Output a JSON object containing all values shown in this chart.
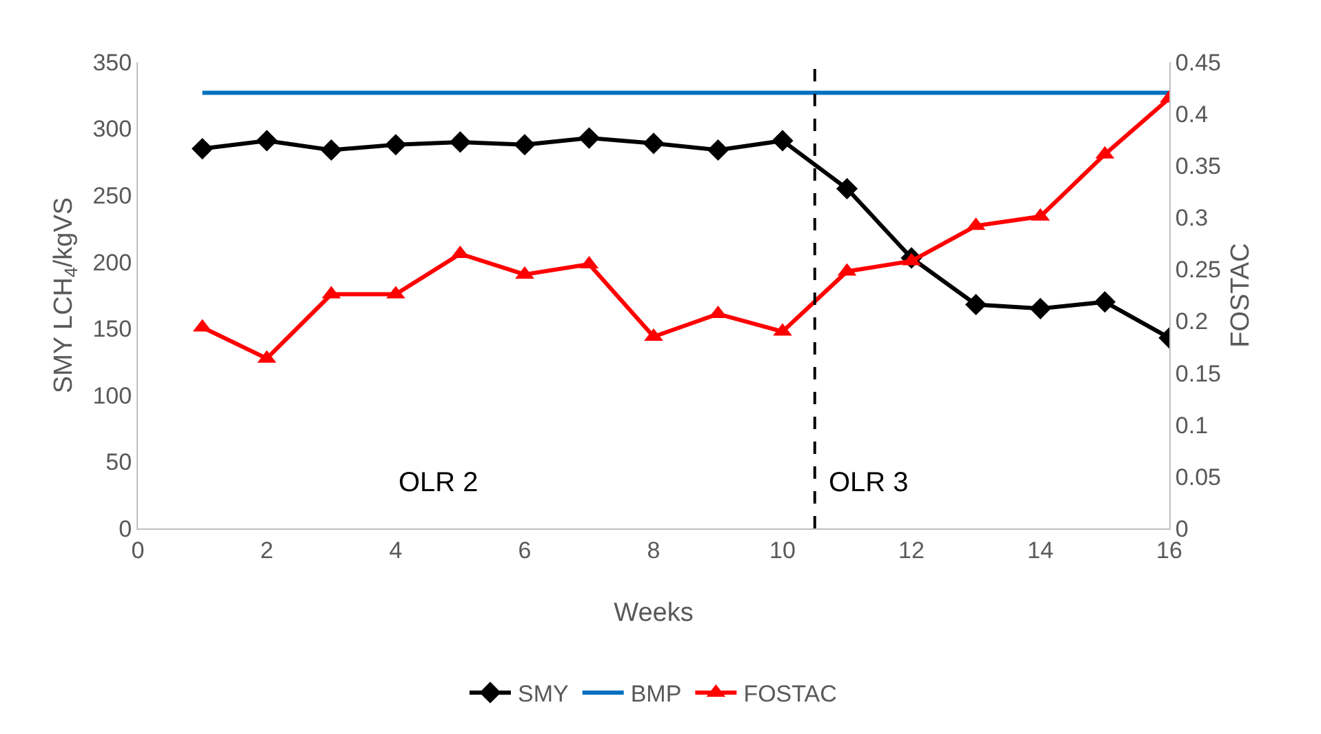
{
  "chart_data": {
    "type": "line",
    "xlabel": "Weeks",
    "ylabel": "SMY LCH$_{4}$/kgVS",
    "y2label": "FOSTAC",
    "x": [
      1,
      2,
      3,
      4,
      5,
      6,
      7,
      8,
      9,
      10,
      11,
      12,
      13,
      14,
      15,
      16
    ],
    "series": [
      {
        "name": "SMY",
        "color": "#000000",
        "marker": "diamond",
        "values": [
          285,
          291,
          284,
          288,
          290,
          288,
          293,
          289,
          284,
          291,
          255,
          203,
          168,
          165,
          170,
          143
        ]
      },
      {
        "name": "BMP",
        "color": "#0070c0",
        "marker": "none",
        "values": [
          327,
          327,
          327,
          327,
          327,
          327,
          327,
          327,
          327,
          327,
          327,
          327,
          327,
          327,
          327,
          327
        ]
      },
      {
        "name": "FOSTAC",
        "color": "#ff0000",
        "marker": "triangle",
        "axis": "y2",
        "values": [
          0.194,
          0.164,
          0.226,
          0.226,
          0.265,
          0.245,
          0.255,
          0.185,
          0.207,
          0.19,
          0.248,
          0.258,
          0.292,
          0.301,
          0.361,
          0.415
        ]
      }
    ],
    "xlim": [
      0,
      16
    ],
    "xticks": [
      0,
      2,
      4,
      6,
      8,
      10,
      12,
      14,
      16
    ],
    "ylim": [
      0,
      350
    ],
    "yticks": [
      0,
      50,
      100,
      150,
      200,
      250,
      300,
      350
    ],
    "y2lim": [
      0,
      0.45
    ],
    "y2ticks": [
      0,
      0.05,
      0.1,
      0.15,
      0.2,
      0.25,
      0.3,
      0.35,
      0.4,
      0.45
    ],
    "ref_lines": [
      {
        "axis": "x",
        "value": 10.5,
        "color": "#000000",
        "line_style": "dashed"
      }
    ],
    "annotations": [
      "OLR 2",
      "OLR 3"
    ],
    "grid": false,
    "legend": "bottom"
  }
}
